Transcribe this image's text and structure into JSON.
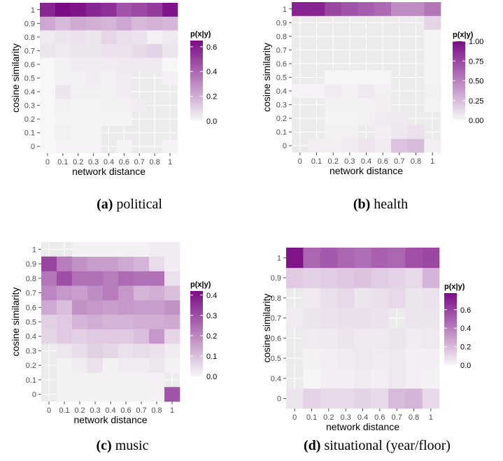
{
  "figure": {
    "panels": [
      {
        "label": "(a)",
        "caption": "political"
      },
      {
        "label": "(b)",
        "caption": "health"
      },
      {
        "label": "(c)",
        "caption": "music"
      },
      {
        "label": "(d)",
        "caption": "situational (year/floor)"
      }
    ]
  },
  "chart_data": [
    {
      "type": "heatmap",
      "panel": "(a) political",
      "xlabel": "network distance",
      "ylabel": "cosine similarity",
      "x_categories": [
        "0",
        "0.1",
        "0.2",
        "0.3",
        "0.4",
        "0.6",
        "0.7",
        "0.8",
        "1"
      ],
      "y_categories": [
        "0",
        "0.1",
        "0.2",
        "0.3",
        "0.4",
        "0.5",
        "0.6",
        "0.7",
        "0.8",
        "0.9",
        "1"
      ],
      "legend": {
        "title": "p(x|y)",
        "ticks": [
          "0.0",
          "0.2",
          "0.4",
          "0.6"
        ],
        "range": [
          0,
          0.65
        ],
        "color_low": "#f7f7f7",
        "color_high": "#7b0c86"
      },
      "grid": true,
      "values": [
        [
          0.0,
          0.01,
          0.01,
          0.01,
          null,
          0.01,
          null,
          null,
          0.01
        ],
        [
          0.0,
          0.02,
          0.01,
          0.01,
          null,
          null,
          null,
          null,
          null
        ],
        [
          0.0,
          0.01,
          0.01,
          0.01,
          0.01,
          0.01,
          null,
          null,
          null
        ],
        [
          0.0,
          0.02,
          0.01,
          0.01,
          0.02,
          0.02,
          0.03,
          null,
          null
        ],
        [
          0.0,
          0.05,
          0.02,
          0.02,
          0.02,
          0.03,
          null,
          null,
          null
        ],
        [
          0.0,
          0.02,
          0.02,
          0.03,
          0.02,
          0.03,
          null,
          null,
          0.02
        ],
        [
          0.0,
          0.02,
          0.03,
          0.03,
          0.03,
          0.04,
          0.04,
          0.04,
          0.0
        ],
        [
          0.05,
          0.04,
          0.05,
          0.05,
          0.06,
          0.06,
          0.08,
          0.1,
          0.05
        ],
        [
          0.04,
          0.05,
          0.06,
          0.05,
          0.09,
          0.07,
          0.06,
          0.02,
          0.04
        ],
        [
          0.22,
          0.17,
          0.21,
          0.2,
          0.18,
          0.22,
          0.17,
          0.19,
          0.18
        ],
        [
          0.58,
          0.65,
          0.63,
          0.58,
          0.55,
          0.45,
          0.48,
          0.52,
          0.63
        ]
      ]
    },
    {
      "type": "heatmap",
      "panel": "(b) health",
      "xlabel": "network distance",
      "ylabel": "cosine similarity",
      "x_categories": [
        "0",
        "0.1",
        "0.2",
        "0.3",
        "0.4",
        "0.6",
        "0.7",
        "0.8",
        "1"
      ],
      "y_categories": [
        "0",
        "0.1",
        "0.2",
        "0.3",
        "0.4",
        "0.5",
        "0.6",
        "0.7",
        "0.8",
        "0.9",
        "1"
      ],
      "legend": {
        "title": "p(x|y)",
        "ticks": [
          "0.00",
          "0.25",
          "0.50",
          "0.75",
          "1.00"
        ],
        "range": [
          0,
          1
        ],
        "color_low": "#f7f7f7",
        "color_high": "#7b0c86"
      },
      "grid": true,
      "values": [
        [
          null,
          0.04,
          0.04,
          0.05,
          0.08,
          0.05,
          0.22,
          0.25,
          0.04
        ],
        [
          null,
          null,
          0.03,
          0.03,
          null,
          0.04,
          0.07,
          0.1,
          null
        ],
        [
          null,
          null,
          0.02,
          0.02,
          0.03,
          0.05,
          0.06,
          null,
          null
        ],
        [
          null,
          null,
          0.03,
          0.03,
          0.03,
          0.04,
          null,
          null,
          0.02
        ],
        [
          0.02,
          0.02,
          0.05,
          0.03,
          0.06,
          0.03,
          null,
          null,
          0.03
        ],
        [
          null,
          null,
          0.01,
          0.01,
          0.01,
          0.01,
          null,
          null,
          0.02
        ],
        [
          null,
          null,
          null,
          null,
          null,
          null,
          null,
          null,
          0.02
        ],
        [
          null,
          null,
          null,
          null,
          null,
          null,
          null,
          null,
          0.02
        ],
        [
          null,
          null,
          null,
          null,
          null,
          null,
          null,
          null,
          0.02
        ],
        [
          null,
          null,
          null,
          null,
          null,
          null,
          null,
          null,
          0.15
        ],
        [
          0.9,
          0.9,
          0.75,
          0.7,
          0.65,
          0.6,
          0.45,
          0.45,
          0.55
        ]
      ]
    },
    {
      "type": "heatmap",
      "panel": "(c) music",
      "xlabel": "network distance",
      "ylabel": "cosine similarity",
      "x_categories": [
        "0",
        "0.1",
        "0.2",
        "0.3",
        "0.4",
        "0.6",
        "0.7",
        "0.8",
        "1"
      ],
      "y_categories": [
        "0",
        "0.1",
        "0.2",
        "0.3",
        "0.4",
        "0.5",
        "0.6",
        "0.7",
        "0.8",
        "0.9",
        "1"
      ],
      "legend": {
        "title": "p(x|y)",
        "ticks": [
          "0.0",
          "0.1",
          "0.2",
          "0.3",
          "0.4"
        ],
        "range": [
          0,
          0.42
        ],
        "color_low": "#f7f7f7",
        "color_high": "#7b0c86"
      },
      "grid": true,
      "values": [
        [
          null,
          0.01,
          0.01,
          0.01,
          0.01,
          0.01,
          0.01,
          0.01,
          0.29
        ],
        [
          null,
          0.01,
          0.01,
          0.01,
          0.01,
          0.01,
          0.01,
          0.01,
          null
        ],
        [
          null,
          0.01,
          0.02,
          0.04,
          0.01,
          0.02,
          0.02,
          0.03,
          0.01
        ],
        [
          null,
          0.03,
          0.05,
          0.07,
          0.06,
          0.04,
          0.05,
          0.04,
          0.02
        ],
        [
          0.06,
          0.08,
          0.07,
          0.08,
          0.08,
          0.08,
          0.1,
          0.17,
          0.06
        ],
        [
          0.07,
          0.08,
          0.12,
          0.13,
          0.12,
          0.12,
          0.13,
          0.13,
          0.14
        ],
        [
          0.14,
          0.1,
          0.18,
          0.17,
          0.16,
          0.17,
          0.16,
          0.16,
          0.18
        ],
        [
          0.2,
          0.17,
          0.16,
          0.19,
          0.22,
          0.17,
          0.12,
          0.13,
          0.1
        ],
        [
          0.23,
          0.3,
          0.24,
          0.24,
          0.22,
          0.25,
          0.24,
          0.24,
          0.04
        ],
        [
          0.32,
          0.22,
          0.18,
          0.16,
          0.16,
          0.14,
          0.12,
          0.05,
          0.02
        ],
        [
          null,
          null,
          0.01,
          0.01,
          0.01,
          0.01,
          0.01,
          0.02,
          0.02
        ]
      ]
    },
    {
      "type": "heatmap",
      "panel": "(d) situational (year/floor)",
      "xlabel": "network distance",
      "ylabel": "cosine similarity",
      "x_categories": [
        "0",
        "0.1",
        "0.2",
        "0.3",
        "0.4",
        "0.6",
        "0.7",
        "0.8",
        "1"
      ],
      "y_categories": [
        "0",
        "0.4",
        "0.5",
        "0.6",
        "0.7",
        "0.8",
        "0.9",
        "1"
      ],
      "legend": {
        "title": "p(x|y)",
        "ticks": [
          "0.0",
          "0.2",
          "0.4",
          "0.6"
        ],
        "range": [
          0,
          0.78
        ],
        "color_low": "#f7f7f7",
        "color_high": "#7b0c86"
      },
      "grid": true,
      "values": [
        [
          0.06,
          0.12,
          0.1,
          0.1,
          0.12,
          0.1,
          0.2,
          0.22,
          0.1
        ],
        [
          null,
          0.01,
          0.03,
          0.03,
          0.04,
          0.03,
          0.05,
          0.03,
          0.02
        ],
        [
          null,
          0.02,
          0.03,
          0.04,
          0.05,
          0.04,
          0.05,
          0.03,
          0.03
        ],
        [
          null,
          0.04,
          0.05,
          0.06,
          0.05,
          0.05,
          0.06,
          0.04,
          0.05
        ],
        [
          0.04,
          0.06,
          0.07,
          0.08,
          0.08,
          0.07,
          null,
          0.06,
          0.06
        ],
        [
          null,
          0.05,
          0.08,
          0.1,
          0.06,
          0.08,
          0.1,
          0.06,
          0.07
        ],
        [
          0.15,
          0.13,
          0.14,
          0.16,
          0.17,
          0.14,
          0.12,
          0.1,
          0.22
        ],
        [
          0.75,
          0.48,
          0.52,
          0.48,
          0.45,
          0.5,
          0.48,
          0.55,
          0.58
        ]
      ]
    }
  ]
}
